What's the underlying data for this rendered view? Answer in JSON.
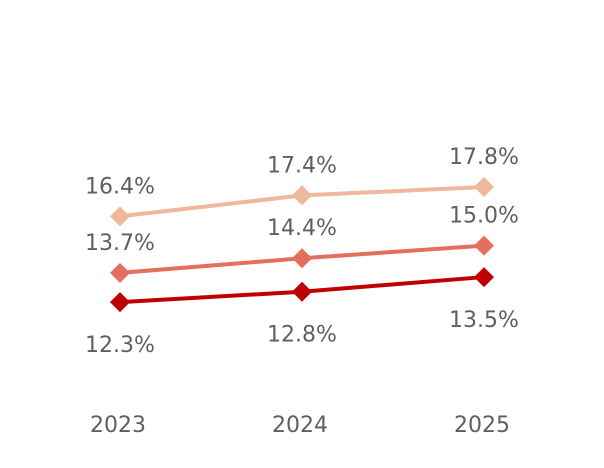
{
  "chart_data": {
    "type": "line",
    "title": "",
    "xlabel": "",
    "ylabel": "",
    "categories": [
      "2023",
      "2024",
      "2025"
    ],
    "grid": false,
    "legend": "none",
    "marker": "diamond",
    "series": [
      {
        "values": [
          16.4,
          17.4,
          17.8
        ],
        "labels": [
          "16.4%",
          "17.4%",
          "17.8%"
        ],
        "color": "#efb89a",
        "label_position": "above"
      },
      {
        "values": [
          13.7,
          14.4,
          15.0
        ],
        "labels": [
          "13.7%",
          "14.4%",
          "15.0%"
        ],
        "color": "#e56f5f",
        "label_position": "above"
      },
      {
        "values": [
          12.3,
          12.8,
          13.5
        ],
        "labels": [
          "12.3%",
          "12.8%",
          "13.5%"
        ],
        "color": "#c00000",
        "label_position": "below"
      }
    ]
  }
}
